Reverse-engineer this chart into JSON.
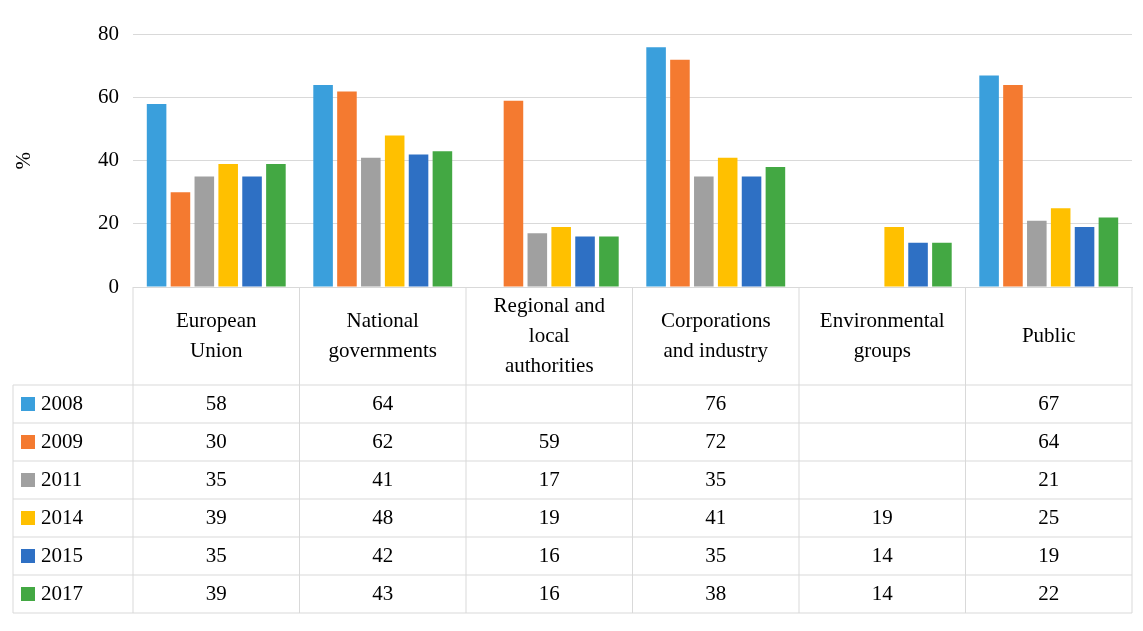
{
  "chart_data": {
    "type": "bar",
    "ylabel": "%",
    "categories": [
      "European Union",
      "National governments",
      "Regional and local authorities",
      "Corporations and industry",
      "Environmental groups",
      "Public"
    ],
    "series": [
      {
        "name": "2008",
        "color": "#3a9fdc",
        "values": [
          58,
          64,
          null,
          76,
          null,
          67
        ]
      },
      {
        "name": "2009",
        "color": "#f47a30",
        "values": [
          30,
          62,
          59,
          72,
          null,
          64
        ]
      },
      {
        "name": "2011",
        "color": "#a0a0a0",
        "values": [
          35,
          41,
          17,
          35,
          null,
          21
        ]
      },
      {
        "name": "2014",
        "color": "#ffc000",
        "values": [
          39,
          48,
          19,
          41,
          19,
          25
        ]
      },
      {
        "name": "2015",
        "color": "#2e70c4",
        "values": [
          35,
          42,
          16,
          35,
          14,
          19
        ]
      },
      {
        "name": "2017",
        "color": "#43a843",
        "values": [
          39,
          43,
          16,
          38,
          14,
          22
        ]
      }
    ],
    "ylim": [
      0,
      80
    ],
    "yticks": [
      0,
      20,
      40,
      60,
      80
    ],
    "grid": "y",
    "data_labels": true,
    "legend": "bottom left"
  }
}
